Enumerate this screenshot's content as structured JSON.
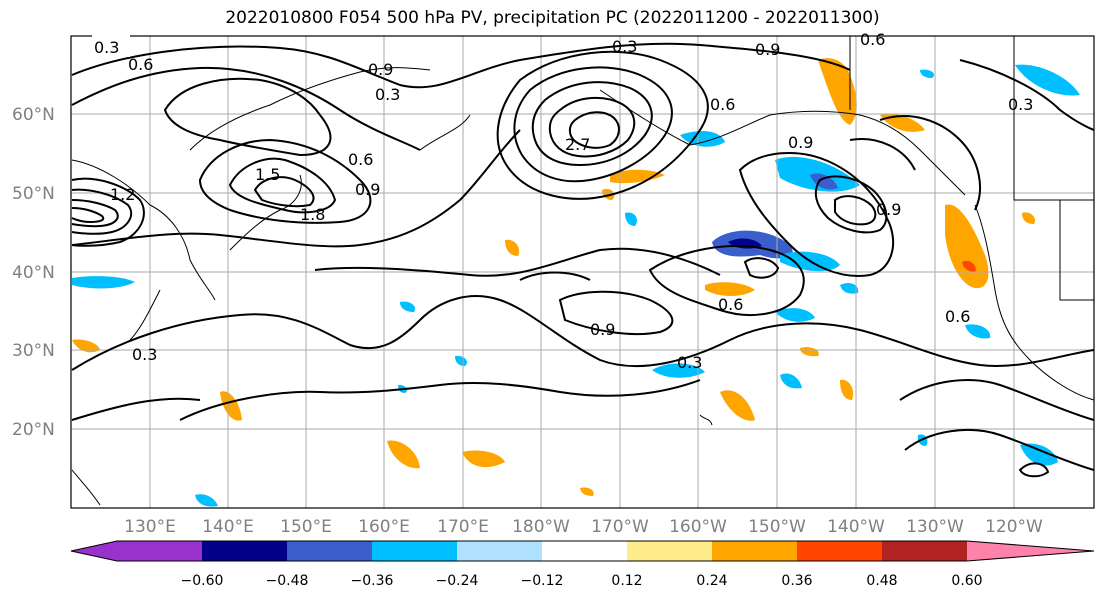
{
  "title": "2022010800 F054 500 hPa PV, precipitation PC (2022011200 - 2022011300)",
  "lat_labels": [
    "60°N",
    "50°N",
    "40°N",
    "30°N",
    "20°N"
  ],
  "lon_labels": [
    "130°E",
    "140°E",
    "150°E",
    "160°E",
    "170°E",
    "180°W",
    "170°W",
    "160°W",
    "150°W",
    "140°W",
    "130°W",
    "120°W"
  ],
  "colorbar": {
    "ticks": [
      "−0.60",
      "−0.48",
      "−0.36",
      "−0.24",
      "−0.12",
      "0.12",
      "0.24",
      "0.36",
      "0.48",
      "0.60"
    ],
    "colors": [
      "#9932cc",
      "#00008b",
      "#3a5fcd",
      "#00bfff",
      "#b0e2ff",
      "#ffffff",
      "#ffec8b",
      "#ffa500",
      "#ff4500",
      "#b22222",
      "#ff82ab"
    ]
  },
  "contour_labels": [
    "0.3",
    "0.6",
    "0.9",
    "1.2",
    "1.5",
    "1.8",
    "2.7",
    "0.3",
    "0.6",
    "0.9",
    "0.3",
    "0.6",
    "0.9",
    "0.6",
    "0.9",
    "0.3",
    "0.9",
    "0.6",
    "0.9",
    "0.3",
    "0.6",
    "0.3"
  ]
}
